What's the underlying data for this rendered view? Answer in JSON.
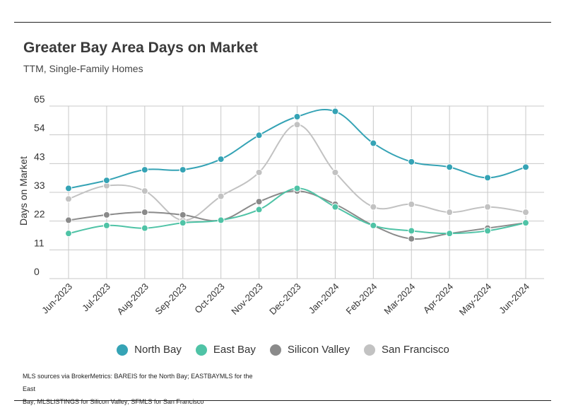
{
  "header": {
    "title": "Greater Bay Area Days on Market",
    "subtitle": "TTM, Single-Family Homes"
  },
  "footnote": {
    "line1": "MLS sources via BrokerMetrics: BAREIS for the North Bay; EASTBAYMLS for the East",
    "line2": "Bay; MLSLISTINGS for Silicon Valley; SFMLS for San Francisco"
  },
  "chart_data": {
    "type": "line",
    "title": "Greater Bay Area Days on Market",
    "subtitle": "TTM, Single-Family Homes",
    "xlabel": "",
    "ylabel": "Days on Market",
    "ylim": [
      0,
      65
    ],
    "yticks": [
      "0",
      "11",
      "22",
      "33",
      "43",
      "54",
      "65"
    ],
    "grid": true,
    "legend_position": "bottom",
    "categories": [
      "Jun-2023",
      "Jul-2023",
      "Aug-2023",
      "Sep-2023",
      "Oct-2023",
      "Nov-2023",
      "Dec-2023",
      "Jan-2024",
      "Feb-2024",
      "Mar-2024",
      "Apr-2024",
      "May-2024",
      "Jun-2024"
    ],
    "series": [
      {
        "name": "North Bay",
        "color": "#35a3b5",
        "values": [
          34,
          37,
          41,
          41,
          45,
          54,
          61,
          63,
          51,
          44,
          42,
          38,
          42
        ]
      },
      {
        "name": "East Bay",
        "color": "#4fc3a6",
        "values": [
          17,
          20,
          19,
          21,
          22,
          26,
          34,
          27,
          20,
          18,
          17,
          18,
          21
        ]
      },
      {
        "name": "Silicon Valley",
        "color": "#8a8a8a",
        "values": [
          22,
          24,
          25,
          24,
          22,
          29,
          33,
          28,
          20,
          15,
          17,
          19,
          21
        ]
      },
      {
        "name": "San Francisco",
        "color": "#c2c2c2",
        "values": [
          30,
          35,
          33,
          22,
          31,
          40,
          58,
          40,
          27,
          28,
          25,
          27,
          25
        ]
      }
    ]
  }
}
